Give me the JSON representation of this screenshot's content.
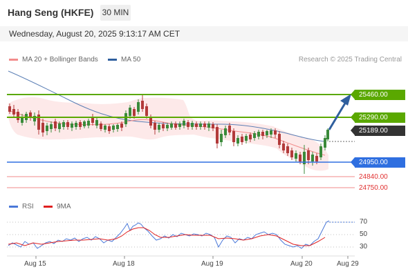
{
  "header": {
    "title": "Hang Seng (HKFE)",
    "timeframe": "30 MIN"
  },
  "datetime": "Wednesday, August 20, 2025 9:13:17 AM CET",
  "legend": {
    "ma_bb_label": "MA 20 + Bollinger Bands",
    "ma_bb_color": "#f28c8c",
    "ma50_label": "MA 50",
    "ma50_color": "#2f5f9e",
    "credit": "Research © 2025 Trading Central"
  },
  "levels": {
    "r2": {
      "value": "25460.00",
      "color": "#5aa800"
    },
    "r1": {
      "value": "25290.00",
      "color": "#5aa800"
    },
    "last": {
      "value": "25189.00",
      "color": "#333333"
    },
    "pivot": {
      "value": "24950.00",
      "color": "#2f6fe0"
    },
    "s1": {
      "value": "24840.00",
      "color": "#e03030"
    },
    "s2": {
      "value": "24750.00",
      "color": "#e03030"
    }
  },
  "rsi_legend": {
    "rsi_label": "RSI",
    "rsi_color": "#4a78d8",
    "ma_label": "9MA",
    "ma_color": "#e02020"
  },
  "rsi_axis": [
    "70",
    "50",
    "30"
  ],
  "x_axis": [
    "Aug 15",
    "Aug 18",
    "Aug 19",
    "Aug 20",
    "Aug 29"
  ]
}
